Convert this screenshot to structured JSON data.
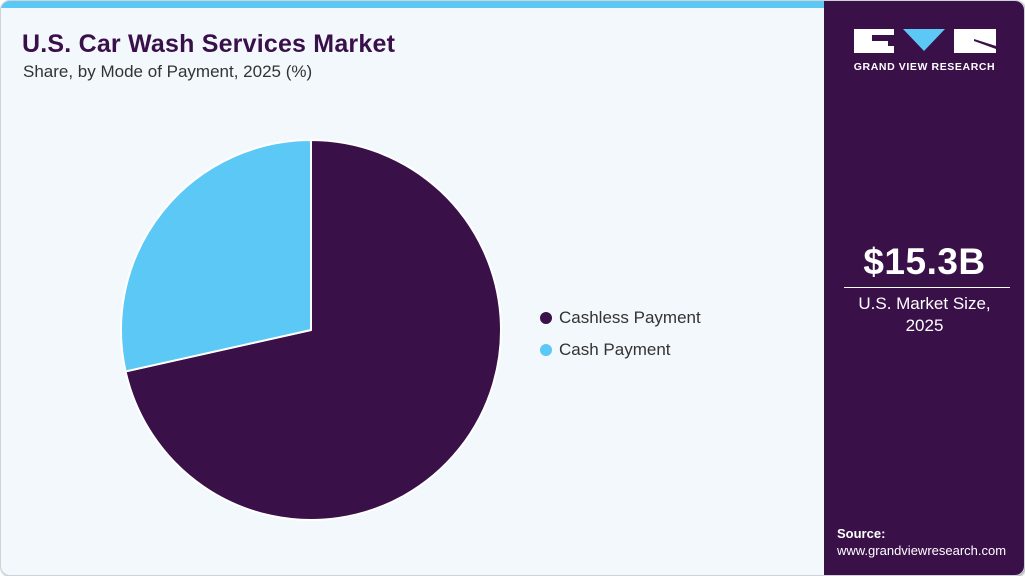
{
  "header": {
    "title": "U.S. Car Wash Services Market",
    "subtitle": "Share, by Mode of Payment, 2025 (%)"
  },
  "brand": {
    "name": "GRAND VIEW RESEARCH",
    "colors": {
      "primary": "#3a1049",
      "accent": "#5bc8f5"
    }
  },
  "stat": {
    "value": "$15.3B",
    "label_line1": "U.S. Market Size,",
    "label_line2": "2025"
  },
  "source": {
    "label": "Source:",
    "url": "www.grandviewresearch.com"
  },
  "legend": [
    {
      "label": "Cashless Payment",
      "color": "#3a1049"
    },
    {
      "label": "Cash Payment",
      "color": "#5bc8f5"
    }
  ],
  "chart_data": {
    "type": "pie",
    "title": "U.S. Car Wash Services Market",
    "subtitle": "Share, by Mode of Payment, 2025 (%)",
    "categories": [
      "Cashless Payment",
      "Cash Payment"
    ],
    "values": [
      71.5,
      28.5
    ],
    "colors": [
      "#3a1049",
      "#5bc8f5"
    ],
    "start_angle": "12 o'clock",
    "direction": "clockwise",
    "legend_position": "right",
    "data_labels": false
  }
}
